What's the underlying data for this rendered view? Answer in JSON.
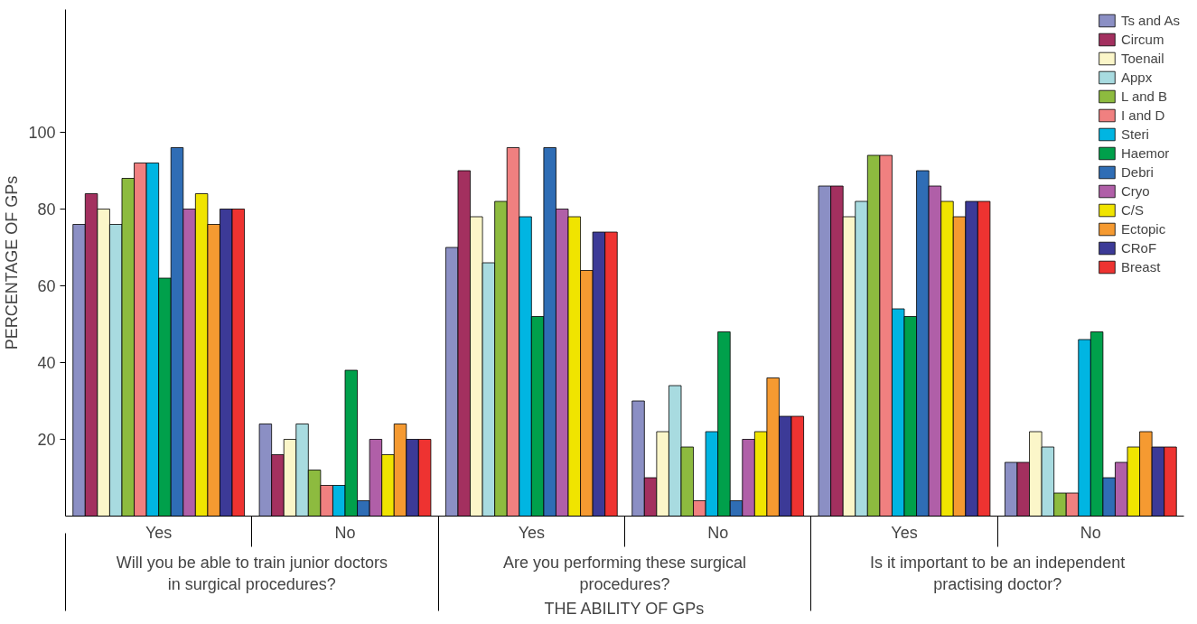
{
  "chart_data": {
    "type": "bar",
    "xlabel": "THE ABILITY OF GPs",
    "ylabel": "PERCENTAGE OF GPs",
    "categories": [
      "Yes",
      "No",
      "Yes",
      "No",
      "Yes",
      "No"
    ],
    "annotations": [
      "Will you be able to train junior doctors in surgical procedures?",
      "Are you performing these surgical procedures?",
      "Is it important to be an independent practising doctor?"
    ],
    "ylim": [
      0,
      132
    ],
    "yticks": [
      20,
      40,
      60,
      80,
      100
    ],
    "grid": false,
    "legend": "top right",
    "series": [
      {
        "name": "Ts and As",
        "color": "#8b8fc4",
        "values": [
          76,
          24,
          70,
          30,
          86,
          14
        ]
      },
      {
        "name": "Circum",
        "color": "#a3305f",
        "values": [
          84,
          16,
          90,
          10,
          86,
          14
        ]
      },
      {
        "name": "Toenail",
        "color": "#fbf6c9",
        "values": [
          80,
          20,
          78,
          22,
          78,
          22
        ]
      },
      {
        "name": "Appx",
        "color": "#a8dbe0",
        "values": [
          76,
          24,
          66,
          34,
          82,
          18
        ]
      },
      {
        "name": "L and B",
        "color": "#8dbb3f",
        "values": [
          88,
          12,
          82,
          18,
          94,
          6
        ]
      },
      {
        "name": "I and D",
        "color": "#f08080",
        "values": [
          92,
          8,
          96,
          4,
          94,
          6
        ]
      },
      {
        "name": "Steri",
        "color": "#00b5e2",
        "values": [
          92,
          8,
          78,
          22,
          54,
          46
        ]
      },
      {
        "name": "Haemor",
        "color": "#00a04b",
        "values": [
          62,
          38,
          52,
          48,
          52,
          48
        ]
      },
      {
        "name": "Debri",
        "color": "#2f6db5",
        "values": [
          96,
          4,
          96,
          4,
          90,
          10
        ]
      },
      {
        "name": "Cryo",
        "color": "#b05fa8",
        "values": [
          80,
          20,
          80,
          20,
          86,
          14
        ]
      },
      {
        "name": "C/S",
        "color": "#f0e400",
        "values": [
          84,
          16,
          78,
          22,
          82,
          18
        ]
      },
      {
        "name": "Ectopic",
        "color": "#f59a31",
        "values": [
          76,
          24,
          64,
          36,
          78,
          22
        ]
      },
      {
        "name": "CRoF",
        "color": "#3c3a97",
        "values": [
          80,
          20,
          74,
          26,
          82,
          18
        ]
      },
      {
        "name": "Breast",
        "color": "#ee3331",
        "values": [
          80,
          20,
          74,
          26,
          82,
          18
        ]
      }
    ]
  }
}
